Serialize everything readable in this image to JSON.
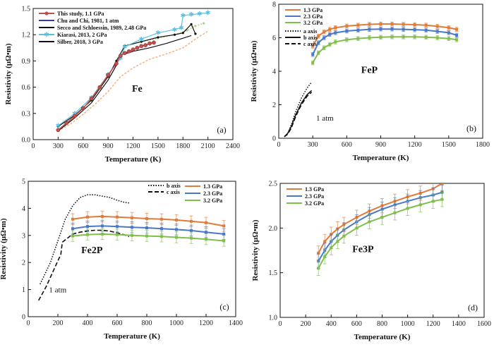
{
  "colors": {
    "orange": "#E07B39",
    "blue": "#4A78C8",
    "green": "#7FBF4A",
    "red": "#C0504D",
    "cyan": "#5BC0DE",
    "pink": "#F4B183",
    "lightgreen": "#A9D18E",
    "black": "#111111"
  },
  "chart_data": [
    {
      "panel": "(a)",
      "annotation": "Fe",
      "type": "line",
      "xlabel": "Temperature (K)",
      "ylabel": "Resistivity (μΩ•m)",
      "xlim": [
        0,
        2400
      ],
      "ylim": [
        0,
        1.5
      ],
      "xticks": [
        "0",
        "300",
        "600",
        "900",
        "1200",
        "1500",
        "1800",
        "2100",
        "2400"
      ],
      "yticks": [
        "0.0",
        "0.3",
        "0.6",
        "0.9",
        "1.2",
        "1.5"
      ],
      "legend_position": "top-left",
      "series": [
        {
          "name": "This study, 1.1 GPa",
          "style": "red-dots",
          "x": [
            300,
            400,
            500,
            600,
            700,
            800,
            900,
            1000,
            1050,
            1100,
            1150,
            1200,
            1250,
            1300,
            1350,
            1400,
            1450
          ],
          "y": [
            0.11,
            0.19,
            0.27,
            0.36,
            0.47,
            0.6,
            0.74,
            0.87,
            0.96,
            0.99,
            1.01,
            1.03,
            1.05,
            1.07,
            1.08,
            1.1,
            1.11
          ]
        },
        {
          "name": "Chu and Chi, 1981, 1 atm",
          "style": "solid-black",
          "x": [
            300,
            500,
            700,
            900,
            1000,
            1050,
            1100,
            1200,
            1400,
            1600,
            1800,
            1900
          ],
          "y": [
            0.1,
            0.25,
            0.42,
            0.68,
            0.85,
            0.97,
            0.98,
            1.01,
            1.05,
            1.1,
            1.16,
            1.19
          ]
        },
        {
          "name": "Secco and Schloessin, 1989, 2.48 GPa",
          "style": "pink-dashed",
          "x": [
            300,
            450,
            600,
            750,
            900,
            1050,
            1200,
            1400,
            1600,
            1800,
            1950,
            2100
          ],
          "y": [
            0.1,
            0.18,
            0.29,
            0.41,
            0.55,
            0.72,
            0.82,
            0.92,
            0.98,
            1.05,
            1.15,
            1.24
          ]
        },
        {
          "name": "Kiarasi, 2013, 2 GPa",
          "style": "cyan-stars",
          "x": [
            300,
            500,
            700,
            900,
            1050,
            1100,
            1300,
            1500,
            1700,
            1780,
            1800,
            1900,
            2000,
            2100
          ],
          "y": [
            0.16,
            0.3,
            0.48,
            0.74,
            0.93,
            1.06,
            1.15,
            1.22,
            1.26,
            1.28,
            1.42,
            1.43,
            1.44,
            1.45
          ]
        },
        {
          "name": "Silber, 2018, 3 GPa",
          "style": "solid-black-2",
          "x": [
            300,
            500,
            700,
            900,
            1000,
            1100,
            1300,
            1500,
            1700,
            1800,
            1900,
            1950
          ],
          "y": [
            0.15,
            0.28,
            0.45,
            0.72,
            0.9,
            1.07,
            1.12,
            1.17,
            1.2,
            1.22,
            1.32,
            1.21
          ]
        },
        {
          "name": "",
          "style": "lightgreen-dots",
          "x": [
            1100,
            1300,
            1500,
            1700,
            1850,
            1950,
            2050
          ],
          "y": [
            1.08,
            1.12,
            1.16,
            1.2,
            1.25,
            1.3,
            1.33
          ]
        }
      ]
    },
    {
      "panel": "(b)",
      "annotation": "FeP",
      "type": "line",
      "xlabel": "Temperature (K)",
      "ylabel": "Resistivity (μΩ•m)",
      "xlim": [
        0,
        1800
      ],
      "ylim": [
        0,
        8
      ],
      "xticks": [
        "0",
        "300",
        "600",
        "900",
        "1200",
        "1500",
        "1800"
      ],
      "yticks": [
        "0",
        "2",
        "4",
        "6",
        "8"
      ],
      "note": "1 atm",
      "series": [
        {
          "name": "1.3 GPa",
          "x": [
            300,
            350,
            400,
            450,
            500,
            600,
            700,
            800,
            900,
            1000,
            1100,
            1200,
            1300,
            1400,
            1500,
            1570
          ],
          "y": [
            5.5,
            6.1,
            6.35,
            6.5,
            6.6,
            6.7,
            6.75,
            6.8,
            6.82,
            6.82,
            6.8,
            6.78,
            6.75,
            6.68,
            6.6,
            6.5
          ],
          "err": 0.12
        },
        {
          "name": "2.3 GPa",
          "x": [
            300,
            350,
            400,
            450,
            500,
            600,
            700,
            800,
            900,
            1000,
            1100,
            1200,
            1300,
            1400,
            1500,
            1570
          ],
          "y": [
            5.0,
            5.7,
            6.0,
            6.2,
            6.3,
            6.4,
            6.45,
            6.5,
            6.52,
            6.52,
            6.5,
            6.48,
            6.45,
            6.38,
            6.3,
            6.15
          ],
          "err": 0.12
        },
        {
          "name": "3.2 GPa",
          "x": [
            300,
            350,
            400,
            450,
            500,
            600,
            700,
            800,
            900,
            1000,
            1100,
            1200,
            1300,
            1400,
            1500,
            1570
          ],
          "y": [
            4.5,
            5.1,
            5.4,
            5.6,
            5.75,
            5.88,
            5.95,
            6.0,
            6.03,
            6.05,
            6.05,
            6.05,
            6.03,
            6.0,
            5.95,
            5.88
          ],
          "err": 0.12
        },
        {
          "name": "a axis",
          "style": "dotted",
          "x": [
            50,
            80,
            110,
            150,
            200,
            250,
            290
          ],
          "y": [
            0.1,
            0.3,
            0.8,
            1.6,
            2.4,
            3.0,
            3.35
          ]
        },
        {
          "name": "b axis",
          "style": "solid",
          "x": [
            50,
            80,
            110,
            150,
            200,
            250,
            290
          ],
          "y": [
            0.1,
            0.3,
            0.7,
            1.4,
            2.1,
            2.6,
            2.85
          ]
        },
        {
          "name": "c axis",
          "style": "dashed",
          "x": [
            50,
            80,
            110,
            150,
            200,
            250,
            290
          ],
          "y": [
            0.08,
            0.25,
            0.6,
            1.3,
            2.0,
            2.5,
            2.75
          ]
        }
      ]
    },
    {
      "panel": "(c)",
      "annotation": "Fe2P",
      "type": "line",
      "xlabel": "Temperature (K)",
      "ylabel": "Resistivity (μΩ•m)",
      "xlim": [
        0,
        1400
      ],
      "ylim": [
        0,
        5
      ],
      "xticks": [
        "0",
        "200",
        "400",
        "600",
        "800",
        "1000",
        "1200",
        "1400"
      ],
      "yticks": [
        "0",
        "1",
        "2",
        "3",
        "4",
        "5"
      ],
      "note": "1 atm",
      "series": [
        {
          "name": "1.3 GPa",
          "x": [
            300,
            400,
            500,
            600,
            700,
            800,
            900,
            1000,
            1100,
            1200,
            1320
          ],
          "y": [
            3.6,
            3.68,
            3.7,
            3.68,
            3.65,
            3.62,
            3.6,
            3.57,
            3.52,
            3.47,
            3.35
          ],
          "err": 0.2
        },
        {
          "name": "2.3 GPa",
          "x": [
            300,
            400,
            500,
            600,
            700,
            800,
            900,
            1000,
            1100,
            1200,
            1320
          ],
          "y": [
            3.25,
            3.33,
            3.35,
            3.33,
            3.3,
            3.28,
            3.25,
            3.22,
            3.18,
            3.12,
            3.05
          ],
          "err": 0.2
        },
        {
          "name": "3.2 GPa",
          "x": [
            300,
            400,
            500,
            600,
            700,
            800,
            900,
            1000,
            1100,
            1200,
            1320
          ],
          "y": [
            2.98,
            3.03,
            3.05,
            3.03,
            3.0,
            2.98,
            2.96,
            2.93,
            2.9,
            2.86,
            2.8
          ],
          "err": 0.2
        },
        {
          "name": "b axis",
          "style": "dotted",
          "x": [
            80,
            150,
            200,
            250,
            300,
            350,
            400,
            450,
            500,
            550,
            600,
            650,
            680
          ],
          "y": [
            1.2,
            2.0,
            2.8,
            3.6,
            4.1,
            4.4,
            4.5,
            4.5,
            4.45,
            4.4,
            4.3,
            4.22,
            4.2
          ]
        },
        {
          "name": "c axis",
          "style": "dashed",
          "x": [
            70,
            120,
            170,
            220,
            230,
            300,
            350,
            400,
            450,
            500,
            550,
            600,
            650,
            680
          ],
          "y": [
            0.6,
            1.1,
            1.7,
            2.3,
            2.75,
            3.05,
            3.12,
            3.17,
            3.19,
            3.19,
            3.16,
            3.1,
            3.02,
            2.95
          ]
        }
      ]
    },
    {
      "panel": "(d)",
      "annotation": "Fe3P",
      "type": "line",
      "xlabel": "Temperature (K)",
      "ylabel": "Resistivity (μΩ•m)",
      "xlim": [
        0,
        1600
      ],
      "ylim": [
        1.0,
        2.5
      ],
      "yticks": [
        "1.0",
        "1.5",
        "2.0",
        "2.5"
      ],
      "xticks": [
        "0",
        "200",
        "400",
        "600",
        "800",
        "1000",
        "1200",
        "1400",
        "1600"
      ],
      "series": [
        {
          "name": "1.3 GPa",
          "x": [
            300,
            350,
            400,
            450,
            500,
            600,
            700,
            800,
            900,
            1000,
            1100,
            1200,
            1270
          ],
          "y": [
            1.72,
            1.85,
            1.93,
            1.99,
            2.04,
            2.12,
            2.19,
            2.25,
            2.3,
            2.35,
            2.39,
            2.44,
            2.5
          ],
          "err": 0.08
        },
        {
          "name": "2.3 GPa",
          "x": [
            300,
            350,
            400,
            450,
            500,
            600,
            700,
            800,
            900,
            1000,
            1100,
            1200,
            1270
          ],
          "y": [
            1.63,
            1.75,
            1.85,
            1.92,
            1.98,
            2.07,
            2.15,
            2.21,
            2.26,
            2.3,
            2.34,
            2.37,
            2.4
          ],
          "err": 0.08
        },
        {
          "name": "3.2 GPa",
          "x": [
            300,
            350,
            400,
            450,
            500,
            600,
            700,
            800,
            900,
            1000,
            1100,
            1200,
            1270
          ],
          "y": [
            1.55,
            1.68,
            1.78,
            1.85,
            1.91,
            2.0,
            2.07,
            2.12,
            2.17,
            2.22,
            2.26,
            2.3,
            2.32
          ],
          "err": 0.08
        }
      ]
    }
  ]
}
